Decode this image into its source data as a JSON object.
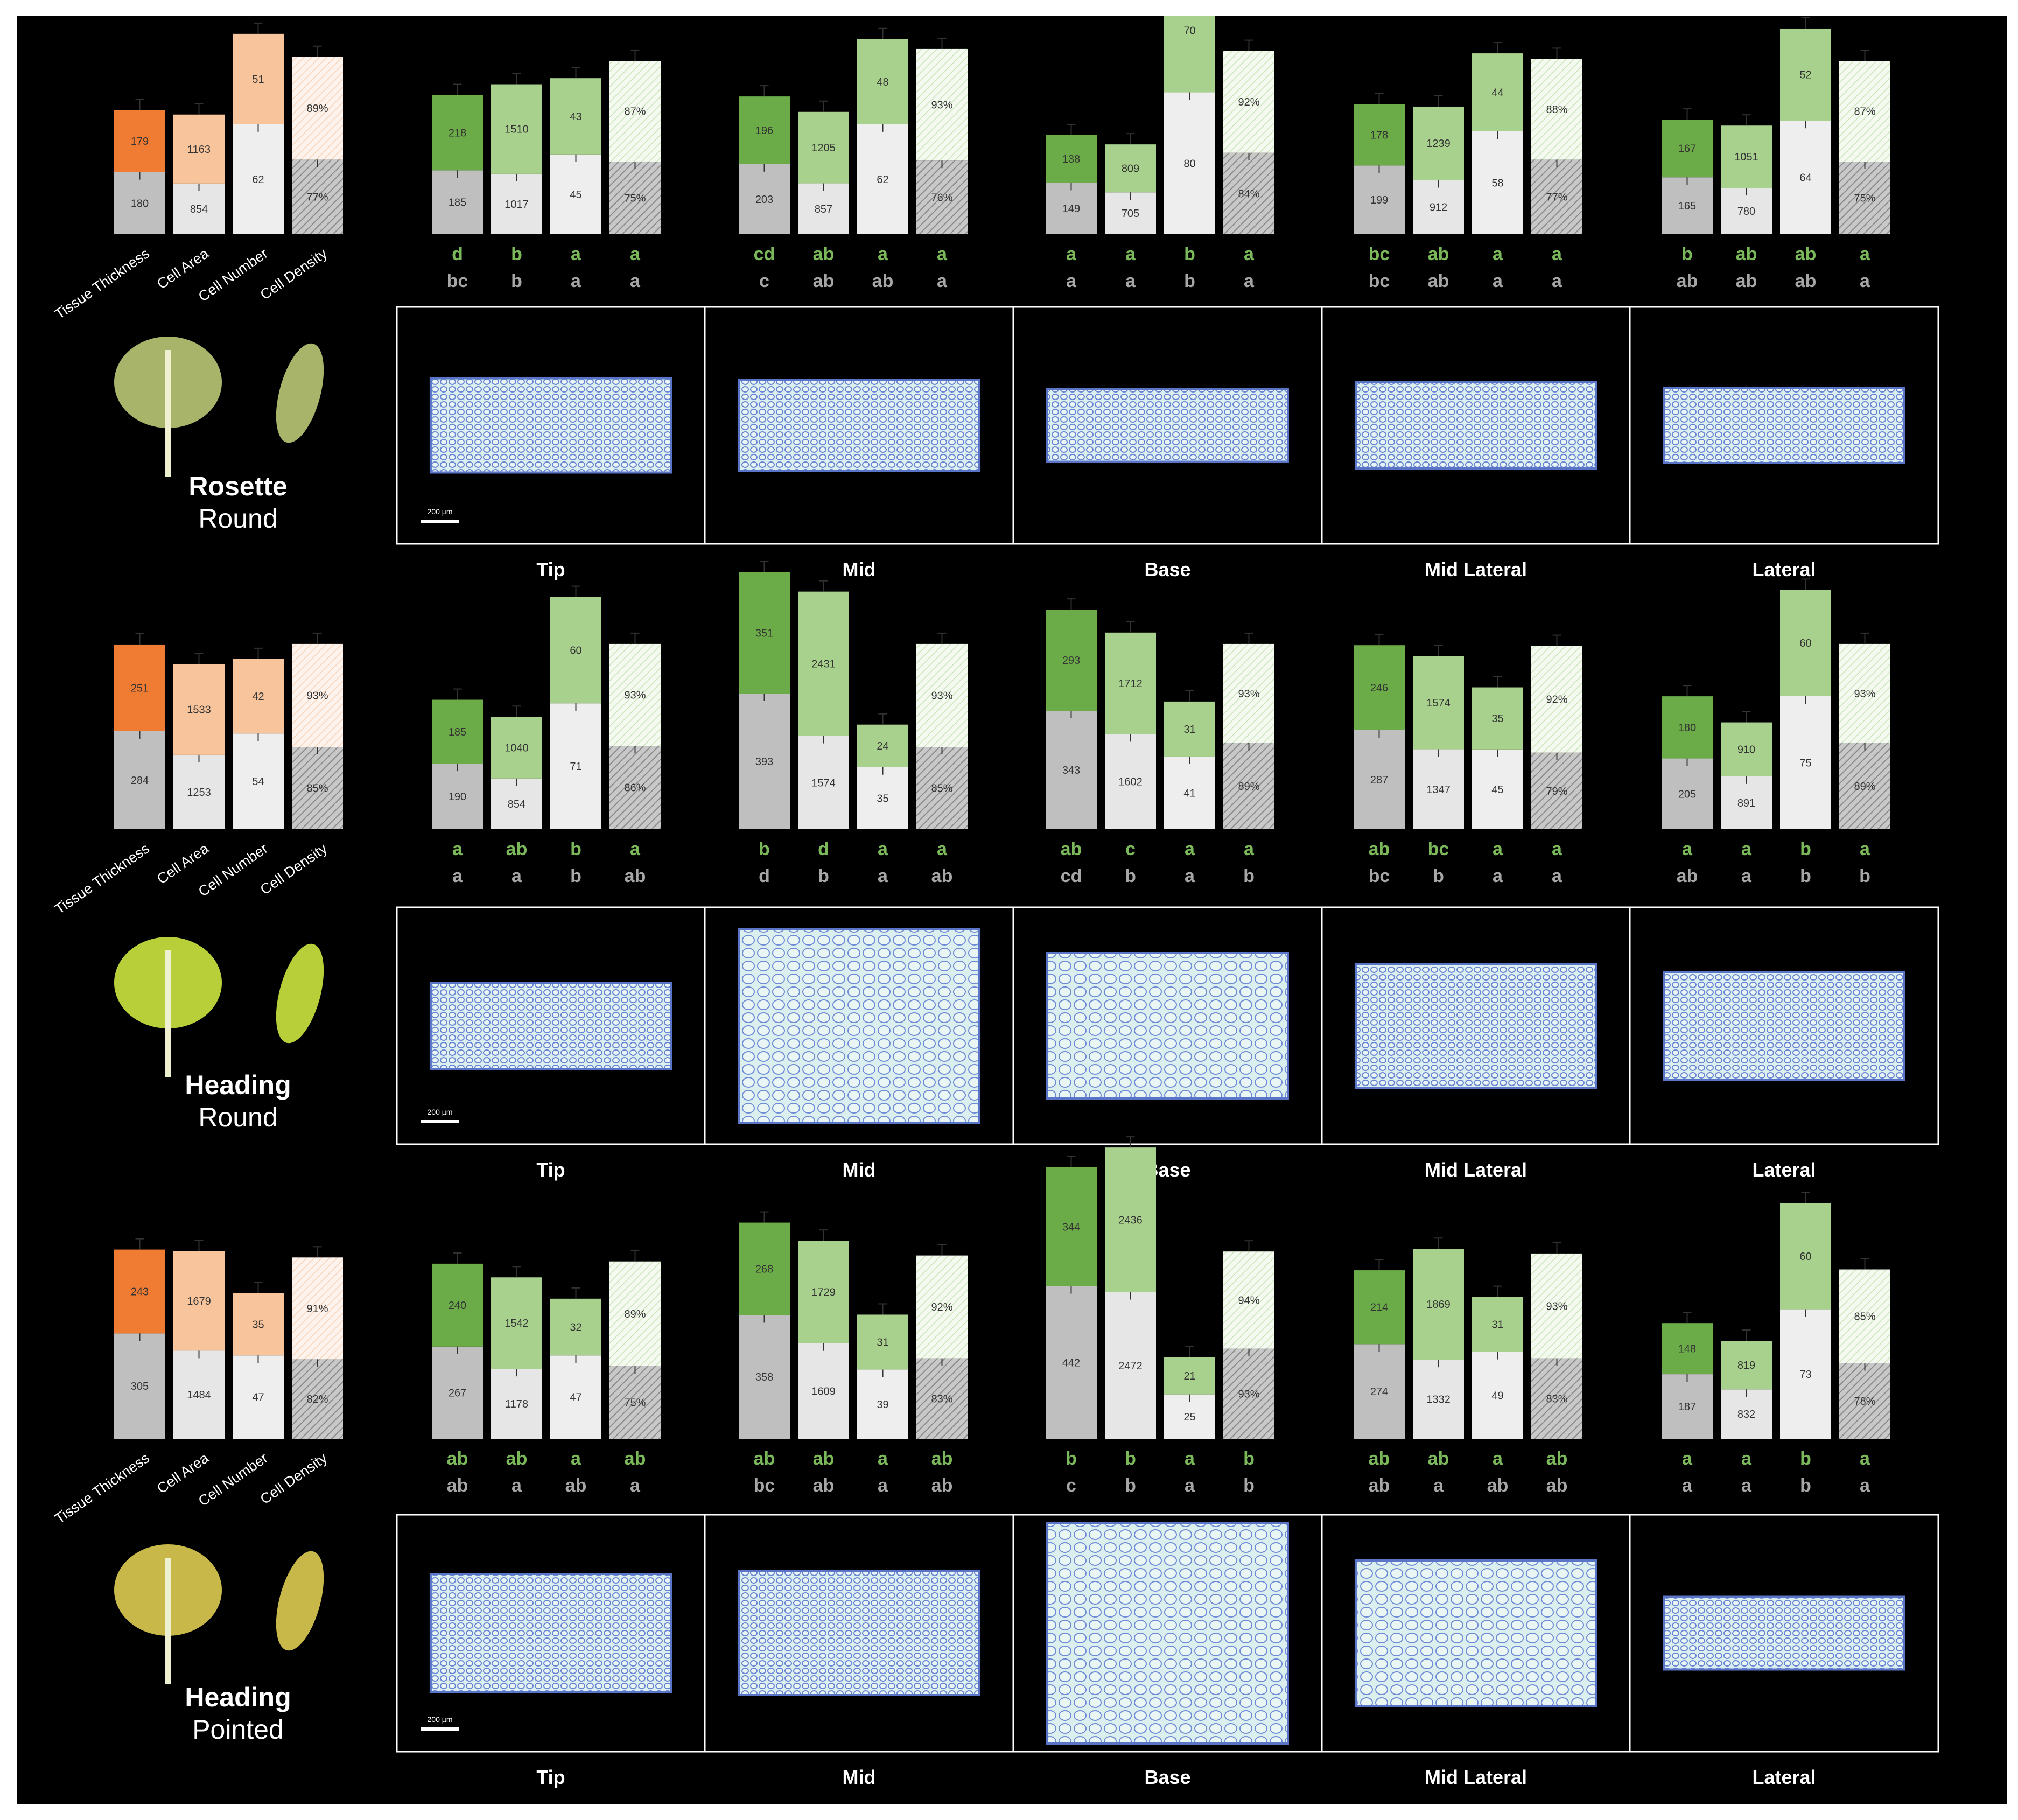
{
  "colors": {
    "background": "#000000",
    "frame": "#ffffff",
    "whole_leaf_top": "#f07b33",
    "whole_leaf_bottom": "#ef7e2f",
    "whole_leaf_light": "#f7c49b",
    "whole_leaf_density": "#fbe6d8",
    "region_top": "#6cac48",
    "region_light": "#a9d18e",
    "region_density": "#e2efda",
    "lower_grey": "#bfbfbf",
    "lower_light": "#eeeeee",
    "letter_green": "#7ab85a",
    "letter_grey": "#a6a6a6",
    "tissue_fill": "#dbeef0",
    "tissue_cell": "#6b86d4"
  },
  "axis_labels": [
    "Tissue Thickness",
    "Cell Area",
    "Cell Number",
    "Cell Density"
  ],
  "region_labels": [
    "Tip",
    "Mid",
    "Base",
    "Mid Lateral",
    "Lateral"
  ],
  "scale_bar_label": "200 µm",
  "chart_data": [
    {
      "type": "bar",
      "stage": "Rosette",
      "shape": "Round",
      "leaf_color": "#a7b46a",
      "whole_leaf": {
        "categories": [
          "Tissue Thickness",
          "Cell Area",
          "Cell Number",
          "Cell Density"
        ],
        "top": [
          "179",
          "1163",
          "51",
          "89%"
        ],
        "bottom": [
          "180",
          "854",
          "62",
          "77%"
        ]
      },
      "regions": [
        {
          "name": "Tip",
          "top": [
            "218",
            "1510",
            "43",
            "87%"
          ],
          "bottom": [
            "185",
            "1017",
            "45",
            "75%"
          ],
          "letters_top": [
            "d",
            "b",
            "a",
            "a"
          ],
          "letters_bottom": [
            "bc",
            "b",
            "a",
            "a"
          ]
        },
        {
          "name": "Mid",
          "top": [
            "196",
            "1205",
            "48",
            "93%"
          ],
          "bottom": [
            "203",
            "857",
            "62",
            "76%"
          ],
          "letters_top": [
            "cd",
            "ab",
            "a",
            "a"
          ],
          "letters_bottom": [
            "c",
            "ab",
            "ab",
            "a"
          ]
        },
        {
          "name": "Base",
          "top": [
            "138",
            "809",
            "70",
            "92%"
          ],
          "bottom": [
            "149",
            "705",
            "80",
            "84%"
          ],
          "letters_top": [
            "a",
            "a",
            "b",
            "a"
          ],
          "letters_bottom": [
            "a",
            "a",
            "b",
            "a"
          ]
        },
        {
          "name": "Mid Lateral",
          "top": [
            "178",
            "1239",
            "44",
            "88%"
          ],
          "bottom": [
            "199",
            "912",
            "58",
            "77%"
          ],
          "letters_top": [
            "bc",
            "ab",
            "a",
            "a"
          ],
          "letters_bottom": [
            "bc",
            "ab",
            "a",
            "a"
          ]
        },
        {
          "name": "Lateral",
          "top": [
            "167",
            "1051",
            "52",
            "87%"
          ],
          "bottom": [
            "165",
            "780",
            "64",
            "75%"
          ],
          "letters_top": [
            "b",
            "ab",
            "ab",
            "a"
          ],
          "letters_bottom": [
            "ab",
            "ab",
            "ab",
            "a"
          ]
        }
      ]
    },
    {
      "type": "bar",
      "stage": "Heading",
      "shape": "Round",
      "leaf_color": "#b8cf3a",
      "whole_leaf": {
        "categories": [
          "Tissue Thickness",
          "Cell Area",
          "Cell Number",
          "Cell Density"
        ],
        "top": [
          "251",
          "1533",
          "42",
          "93%"
        ],
        "bottom": [
          "284",
          "1253",
          "54",
          "85%"
        ]
      },
      "regions": [
        {
          "name": "Tip",
          "top": [
            "185",
            "1040",
            "60",
            "93%"
          ],
          "bottom": [
            "190",
            "854",
            "71",
            "86%"
          ],
          "letters_top": [
            "a",
            "ab",
            "b",
            "a"
          ],
          "letters_bottom": [
            "a",
            "a",
            "b",
            "ab"
          ]
        },
        {
          "name": "Mid",
          "top": [
            "351",
            "2431",
            "24",
            "93%"
          ],
          "bottom": [
            "393",
            "1574",
            "35",
            "85%"
          ],
          "letters_top": [
            "b",
            "d",
            "a",
            "a"
          ],
          "letters_bottom": [
            "d",
            "b",
            "a",
            "ab"
          ]
        },
        {
          "name": "Base",
          "top": [
            "293",
            "1712",
            "31",
            "93%"
          ],
          "bottom": [
            "343",
            "1602",
            "41",
            "89%"
          ],
          "letters_top": [
            "ab",
            "c",
            "a",
            "a"
          ],
          "letters_bottom": [
            "cd",
            "b",
            "a",
            "b"
          ]
        },
        {
          "name": "Mid Lateral",
          "top": [
            "246",
            "1574",
            "35",
            "92%"
          ],
          "bottom": [
            "287",
            "1347",
            "45",
            "79%"
          ],
          "letters_top": [
            "ab",
            "bc",
            "a",
            "a"
          ],
          "letters_bottom": [
            "bc",
            "b",
            "a",
            "a"
          ]
        },
        {
          "name": "Lateral",
          "top": [
            "180",
            "910",
            "60",
            "93%"
          ],
          "bottom": [
            "205",
            "891",
            "75",
            "89%"
          ],
          "letters_top": [
            "a",
            "a",
            "b",
            "a"
          ],
          "letters_bottom": [
            "ab",
            "a",
            "b",
            "b"
          ]
        }
      ]
    },
    {
      "type": "bar",
      "stage": "Heading",
      "shape": "Pointed",
      "leaf_color": "#c8b84a",
      "whole_leaf": {
        "categories": [
          "Tissue Thickness",
          "Cell Area",
          "Cell Number",
          "Cell Density"
        ],
        "top": [
          "243",
          "1679",
          "35",
          "91%"
        ],
        "bottom": [
          "305",
          "1484",
          "47",
          "82%"
        ]
      },
      "regions": [
        {
          "name": "Tip",
          "top": [
            "240",
            "1542",
            "32",
            "89%"
          ],
          "bottom": [
            "267",
            "1178",
            "47",
            "75%"
          ],
          "letters_top": [
            "ab",
            "ab",
            "a",
            "ab"
          ],
          "letters_bottom": [
            "ab",
            "a",
            "ab",
            "a"
          ]
        },
        {
          "name": "Mid",
          "top": [
            "268",
            "1729",
            "31",
            "92%"
          ],
          "bottom": [
            "358",
            "1609",
            "39",
            "83%"
          ],
          "letters_top": [
            "ab",
            "ab",
            "a",
            "ab"
          ],
          "letters_bottom": [
            "bc",
            "ab",
            "a",
            "ab"
          ]
        },
        {
          "name": "Base",
          "top": [
            "344",
            "2436",
            "21",
            "94%"
          ],
          "bottom": [
            "442",
            "2472",
            "25",
            "93%"
          ],
          "letters_top": [
            "b",
            "b",
            "a",
            "b"
          ],
          "letters_bottom": [
            "c",
            "b",
            "a",
            "b"
          ]
        },
        {
          "name": "Mid Lateral",
          "top": [
            "214",
            "1869",
            "31",
            "93%"
          ],
          "bottom": [
            "274",
            "1332",
            "49",
            "83%"
          ],
          "letters_top": [
            "ab",
            "ab",
            "a",
            "ab"
          ],
          "letters_bottom": [
            "ab",
            "a",
            "ab",
            "ab"
          ]
        },
        {
          "name": "Lateral",
          "top": [
            "148",
            "819",
            "60",
            "85%"
          ],
          "bottom": [
            "187",
            "832",
            "73",
            "78%"
          ],
          "letters_top": [
            "a",
            "a",
            "b",
            "a"
          ],
          "letters_bottom": [
            "a",
            "a",
            "b",
            "a"
          ]
        }
      ]
    }
  ]
}
